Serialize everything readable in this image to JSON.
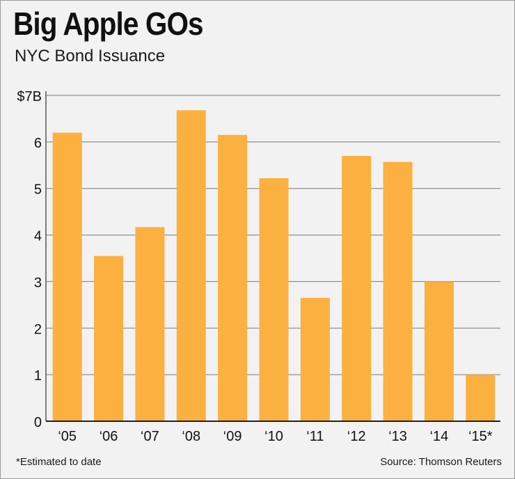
{
  "header": {
    "title": "Big Apple GOs",
    "subtitle": "NYC Bond Issuance"
  },
  "footer": {
    "footnote": "*Estimated to date",
    "source": "Source: Thomson Reuters"
  },
  "colors": {
    "bar": "#fbb040",
    "grid": "#7a7a7a",
    "background": "#f2f2f2"
  },
  "chart_data": {
    "type": "bar",
    "categories": [
      "‘05",
      "‘06",
      "‘07",
      "‘08",
      "‘09",
      "‘10",
      "‘11",
      "‘12",
      "‘13",
      "‘14",
      "‘15*"
    ],
    "values": [
      6.2,
      3.55,
      4.17,
      6.68,
      6.15,
      5.22,
      2.65,
      5.7,
      5.57,
      3.0,
      1.0
    ],
    "title": "Big Apple GOs",
    "subtitle": "NYC Bond Issuance",
    "xlabel": "",
    "ylabel": "",
    "ylim": [
      0,
      7
    ],
    "yticks": [
      0,
      1,
      2,
      3,
      4,
      5,
      6,
      7
    ],
    "ytick_labels": [
      "0",
      "1",
      "2",
      "3",
      "4",
      "5",
      "6",
      "$7B"
    ],
    "grid": true,
    "legend": "none"
  }
}
